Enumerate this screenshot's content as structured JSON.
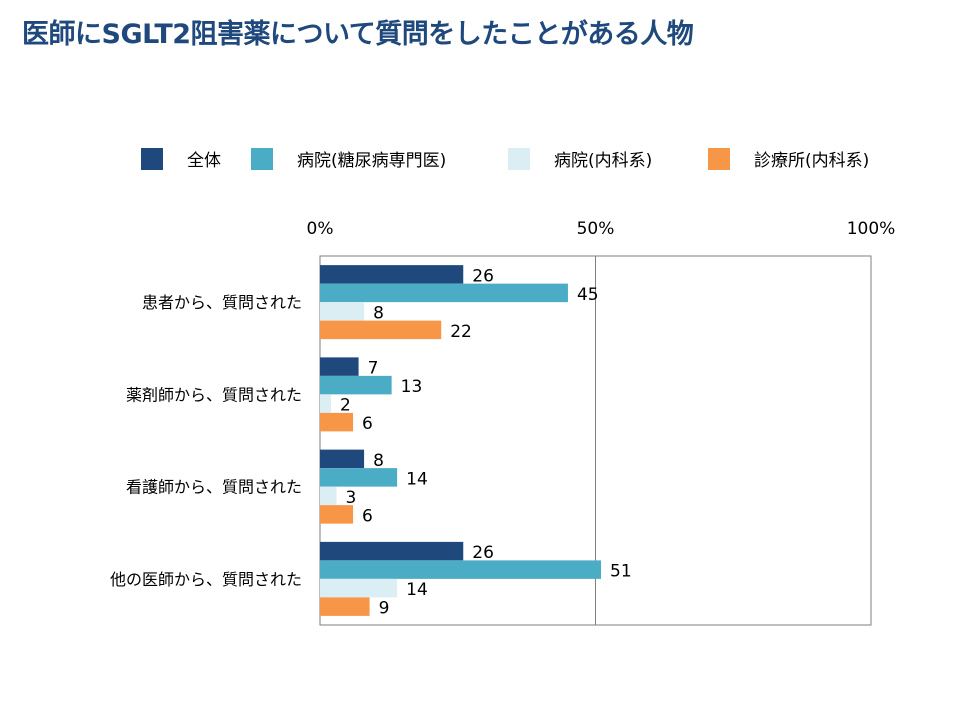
{
  "title": "医師にSGLT2阻害薬について質問をしたことがある人物",
  "chart_data": {
    "type": "bar",
    "orientation": "horizontal",
    "categories": [
      "患者から、質問された",
      "薬剤師から、質問された",
      "看護師から、質問された",
      "他の医師から、質問された"
    ],
    "series": [
      {
        "name": "全体",
        "color": "#1f497d",
        "values": [
          26,
          7,
          8,
          26
        ]
      },
      {
        "name": "病院(糖尿病専門医)",
        "color": "#4bacc6",
        "values": [
          45,
          13,
          14,
          51
        ]
      },
      {
        "name": "病院(内科系)",
        "color": "#dbeef4",
        "values": [
          8,
          2,
          3,
          14
        ]
      },
      {
        "name": "診療所(内科系)",
        "color": "#f79646",
        "values": [
          22,
          6,
          6,
          9
        ]
      }
    ],
    "x_ticks": [
      "0%",
      "50%",
      "100%"
    ],
    "xlim": [
      0,
      100
    ],
    "legend_position": "top",
    "grid": "vertical at 50%"
  }
}
